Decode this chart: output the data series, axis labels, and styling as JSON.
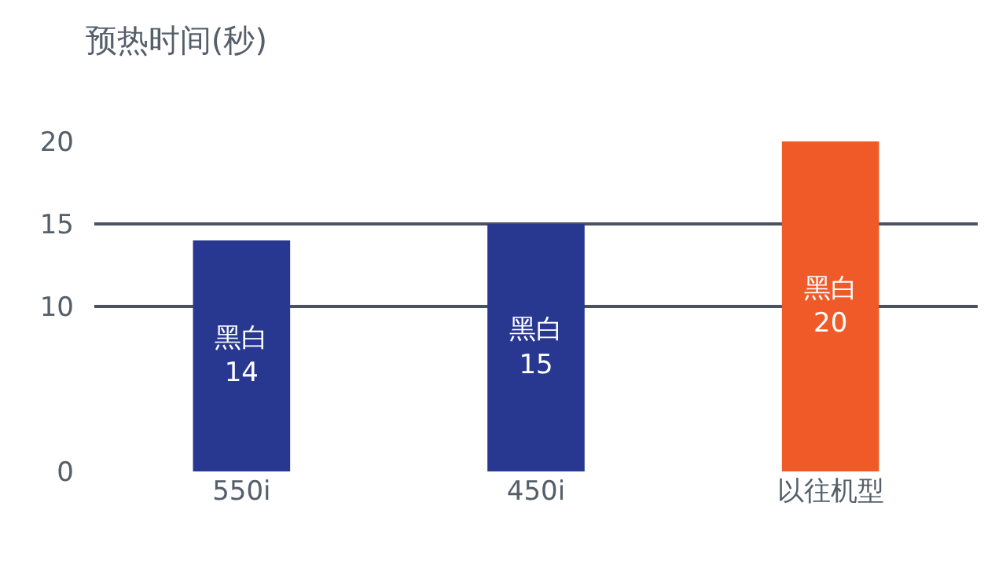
{
  "chart_data": {
    "type": "bar",
    "title": "预热时间(秒)",
    "categories": [
      "550i",
      "450i",
      "以往机型"
    ],
    "values": [
      14,
      15,
      20
    ],
    "colors": [
      "#283891",
      "#283891",
      "#f05a28"
    ],
    "value_labels": [
      "黑白\n14",
      "黑白\n15",
      "黑白\n20"
    ],
    "ylim": [
      0,
      20
    ],
    "yticks": [
      0,
      10,
      15,
      20
    ],
    "grid": "y"
  }
}
